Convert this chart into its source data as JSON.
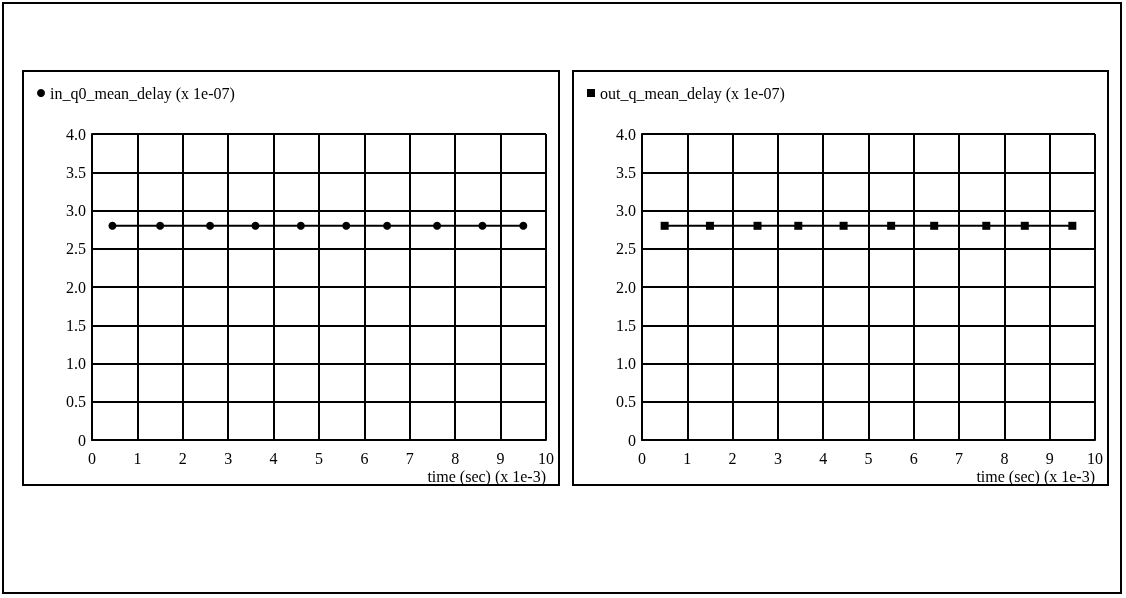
{
  "chart_data": [
    {
      "type": "line",
      "xlabel": "time (sec) (x 1e-3)",
      "legend": "top left",
      "grid": true,
      "marker": "circle",
      "line_style": "solid",
      "xlim": [
        0,
        10
      ],
      "xticks": [
        0,
        1,
        2,
        3,
        4,
        5,
        6,
        7,
        8,
        9,
        10
      ],
      "ylim": [
        0,
        4
      ],
      "yticks": [
        0,
        {
          "value": 0.5,
          "label": "0.5"
        },
        {
          "value": 1,
          "label": "1.0"
        },
        {
          "value": 1.5,
          "label": "1.5"
        },
        {
          "value": 2,
          "label": "2.0"
        },
        {
          "value": 2.5,
          "label": "2.5"
        },
        {
          "value": 3,
          "label": "3.0"
        },
        {
          "value": 3.5,
          "label": "3.5"
        },
        {
          "value": 4,
          "label": "4.0"
        }
      ],
      "series": [
        {
          "name": "in_q0_mean_delay (x 1e-07)",
          "color": "#000000",
          "x": [
            0.45,
            1.5,
            2.6,
            3.6,
            4.6,
            5.6,
            6.5,
            7.6,
            8.6,
            9.5
          ],
          "values": [
            2.8,
            2.8,
            2.8,
            2.8,
            2.8,
            2.8,
            2.8,
            2.8,
            2.8,
            2.8
          ]
        }
      ]
    },
    {
      "type": "line",
      "xlabel": "time (sec) (x 1e-3)",
      "legend": "top left",
      "grid": true,
      "marker": "square",
      "line_style": "solid",
      "xlim": [
        0,
        10
      ],
      "xticks": [
        0,
        1,
        2,
        3,
        4,
        5,
        6,
        7,
        8,
        9,
        10
      ],
      "ylim": [
        0,
        4
      ],
      "yticks": [
        0,
        {
          "value": 0.5,
          "label": "0.5"
        },
        {
          "value": 1,
          "label": "1.0"
        },
        {
          "value": 1.5,
          "label": "1.5"
        },
        {
          "value": 2,
          "label": "2.0"
        },
        {
          "value": 2.5,
          "label": "2.5"
        },
        {
          "value": 3,
          "label": "3.0"
        },
        {
          "value": 3.5,
          "label": "3.5"
        },
        {
          "value": 4,
          "label": "4.0"
        }
      ],
      "series": [
        {
          "name": "out_q_mean_delay (x 1e-07)",
          "color": "#000000",
          "x": [
            0.5,
            1.5,
            2.55,
            3.45,
            4.45,
            5.5,
            6.45,
            7.6,
            8.45,
            9.5
          ],
          "values": [
            2.8,
            2.8,
            2.8,
            2.8,
            2.8,
            2.8,
            2.8,
            2.8,
            2.8,
            2.8
          ]
        }
      ]
    }
  ]
}
